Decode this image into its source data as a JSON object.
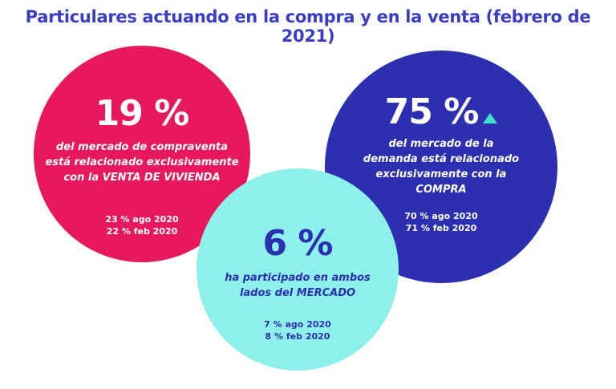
{
  "title": "Particulares actuando en la compra y en la venta (febrero de 2021)",
  "left_circle": {
    "percent": "19 %",
    "desc_line1": "del mercado de compraventa",
    "desc_line2": "está relacionado exclusivamente",
    "desc_line3": "con la VENTA DE VIVIENDA",
    "stat1": "23 % ago 2020",
    "stat2": "22 % feb 2020",
    "color": "#e8185c"
  },
  "right_circle": {
    "percent": "75 %",
    "trend_icon": "triangle-up-icon",
    "desc_line1": "del mercado de la",
    "desc_line2": "demanda está relacionado",
    "desc_line3": "exclusivamente con la",
    "desc_line4": "COMPRA",
    "stat1": "70 % ago 2020",
    "stat2": "71 % feb 2020",
    "color": "#2b2fb0",
    "trend_color": "#3ee0c6"
  },
  "center_circle": {
    "percent": "6 %",
    "desc_line1": "ha participado en ambos",
    "desc_line2": "lados del MERCADO",
    "stat1": "7 % ago 2020",
    "stat2": "8 % feb 2020",
    "color": "#8ef0ea"
  }
}
